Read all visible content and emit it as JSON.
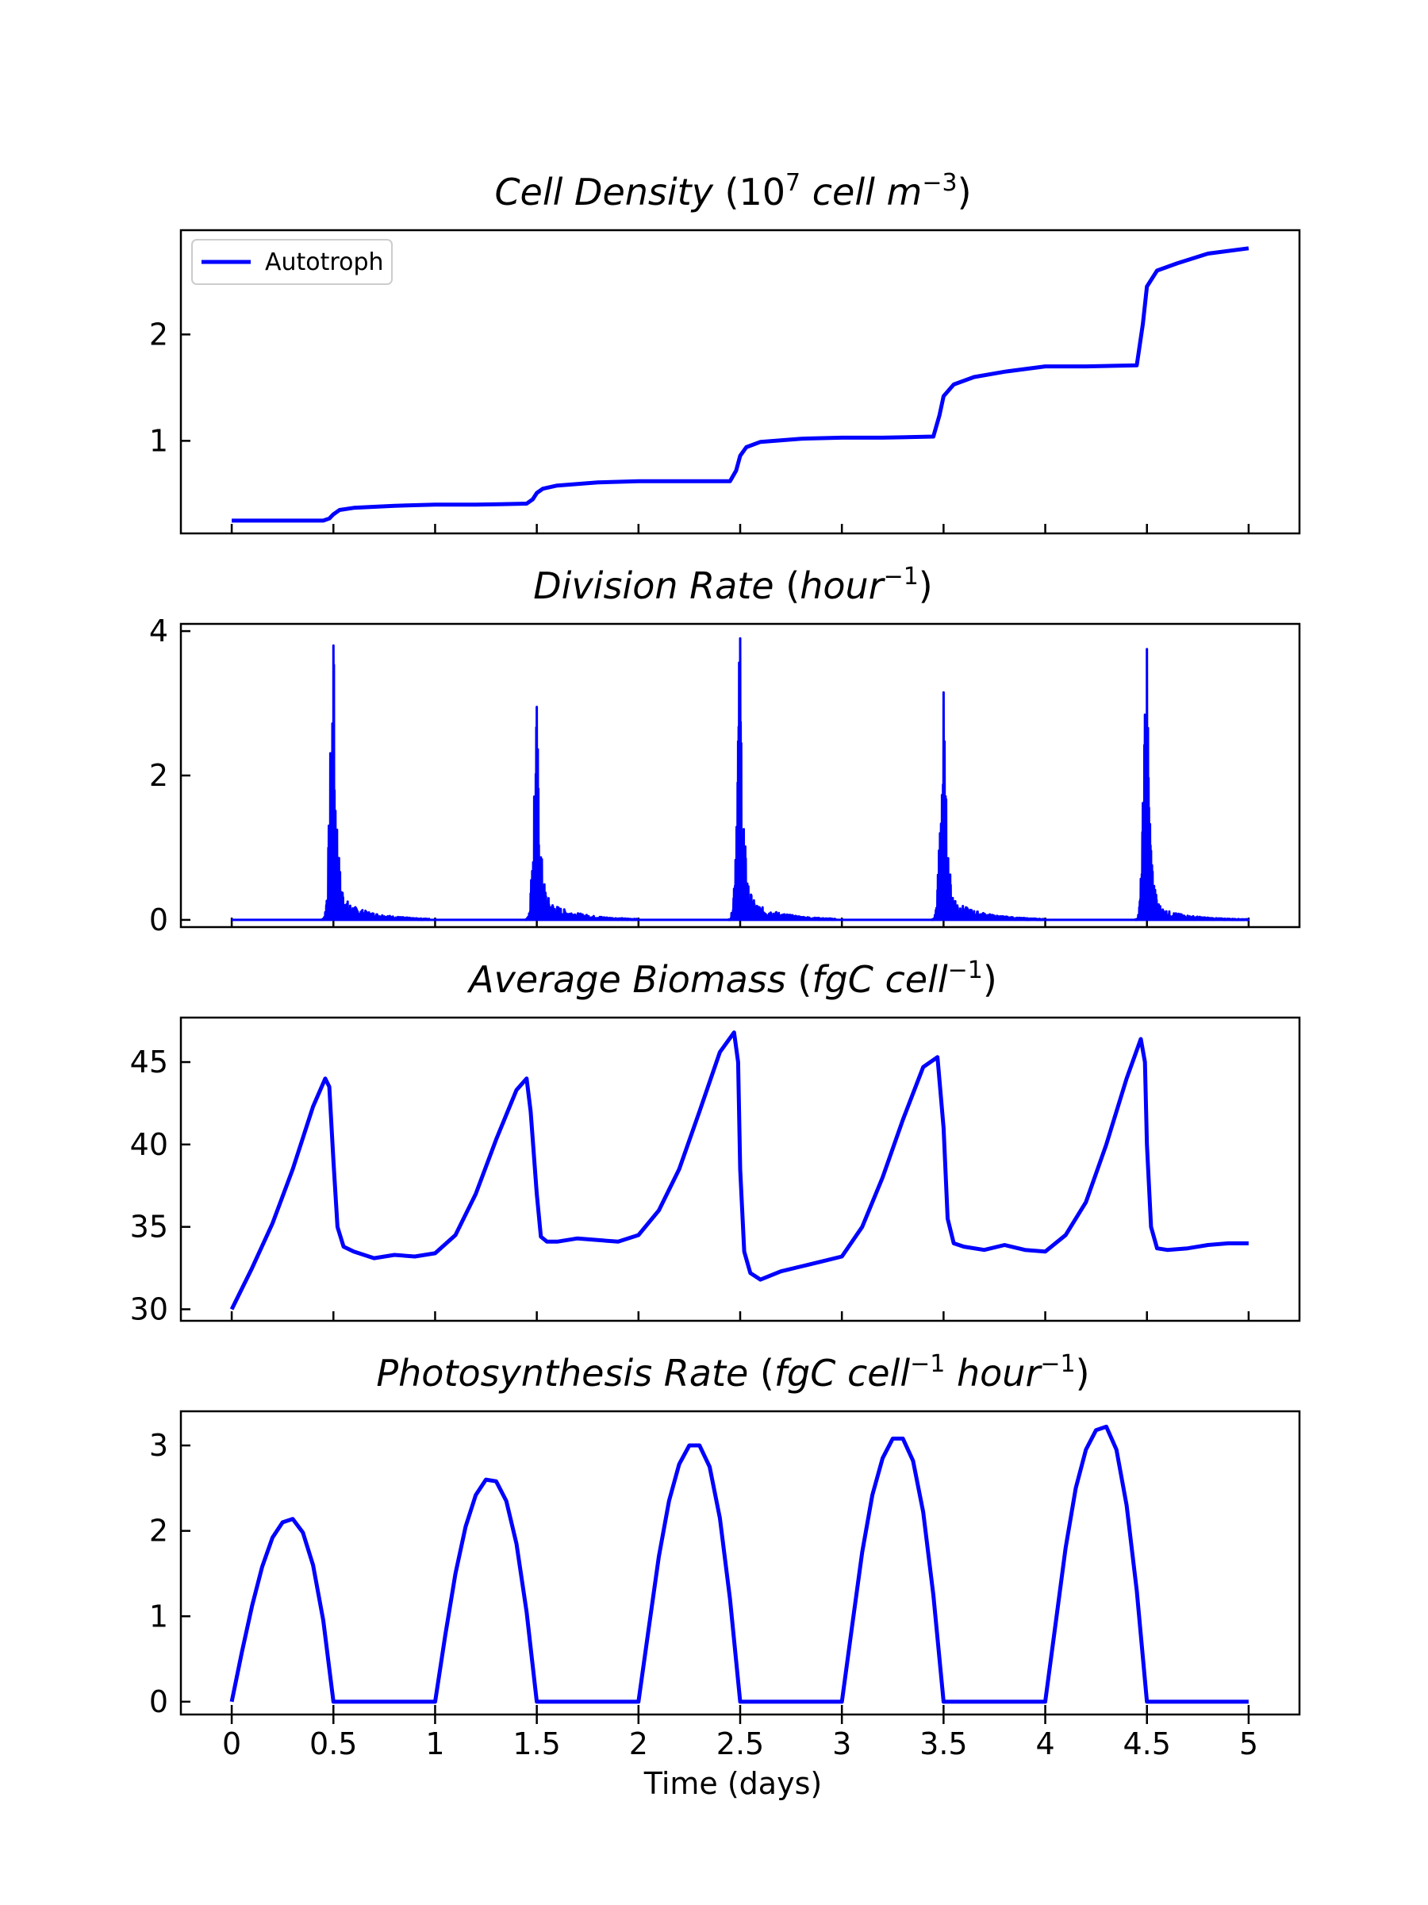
{
  "colors": {
    "series": "#0000ff",
    "axis": "#000000",
    "background": "#ffffff"
  },
  "xaxis": {
    "label": "Time (days)",
    "ticks": [
      0,
      0.5,
      1,
      1.5,
      2,
      2.5,
      3,
      3.5,
      4,
      4.5,
      5
    ],
    "tick_labels": [
      "0",
      "0.5",
      "1",
      "1.5",
      "2",
      "2.5",
      "3",
      "3.5",
      "4",
      "4.5",
      "5"
    ],
    "xlim": [
      -0.25,
      5.25
    ]
  },
  "legend": {
    "label": "Autotroph",
    "placement": "upper-left"
  },
  "panel_titles": [
    {
      "main": "Cell Density",
      "open": " (",
      "base": "10",
      "sup1": "7",
      "rest": " cell m",
      "sup2": "−3",
      "close": ")"
    },
    {
      "main": "Division Rate",
      "open": " (",
      "rest": "hour",
      "sup1": "−1",
      "close": ")"
    },
    {
      "main": "Average Biomass",
      "open": " (",
      "rest": "fgC cell",
      "sup1": "−1",
      "close": ")"
    },
    {
      "main": "Photosynthesis Rate",
      "open": " (",
      "rest": "fgC cell",
      "sup1": "−1",
      "mid": " hour",
      "sup2": "−1",
      "close": ")"
    }
  ],
  "chart_data": [
    {
      "type": "line",
      "title": "Cell Density (10^7 cell m^-3)",
      "xlabel": "Time (days)",
      "ylabel": "",
      "ylim": [
        0.13,
        2.98
      ],
      "yticks": [
        1,
        2
      ],
      "ytick_labels": [
        "1",
        "2"
      ],
      "legend": "upper-left",
      "series": [
        {
          "name": "Autotroph",
          "x": [
            0,
            0.45,
            0.48,
            0.5,
            0.53,
            0.6,
            0.8,
            1.0,
            1.2,
            1.45,
            1.48,
            1.5,
            1.53,
            1.6,
            1.8,
            2.0,
            2.2,
            2.45,
            2.48,
            2.5,
            2.53,
            2.6,
            2.8,
            3.0,
            3.2,
            3.45,
            3.48,
            3.5,
            3.55,
            3.65,
            3.8,
            4.0,
            4.2,
            4.45,
            4.48,
            4.5,
            4.55,
            4.65,
            4.8,
            5.0
          ],
          "y": [
            0.25,
            0.25,
            0.27,
            0.31,
            0.35,
            0.37,
            0.39,
            0.4,
            0.4,
            0.41,
            0.45,
            0.51,
            0.55,
            0.58,
            0.61,
            0.62,
            0.62,
            0.62,
            0.72,
            0.86,
            0.94,
            0.99,
            1.02,
            1.03,
            1.03,
            1.04,
            1.24,
            1.42,
            1.53,
            1.6,
            1.65,
            1.7,
            1.7,
            1.71,
            2.1,
            2.45,
            2.6,
            2.67,
            2.76,
            2.81
          ]
        }
      ]
    },
    {
      "type": "line",
      "title": "Division Rate (hour^-1)",
      "xlabel": "Time (days)",
      "ylabel": "",
      "ylim": [
        -0.1,
        4.1
      ],
      "yticks": [
        0,
        2,
        4
      ],
      "ytick_labels": [
        "0",
        "2",
        "4"
      ],
      "noise": "dense oscillating spikes after each peak",
      "series": [
        {
          "name": "Autotroph",
          "baseline": 0,
          "bursts": [
            {
              "peak_x": 0.5,
              "peak_y": 3.8,
              "start_x": 0.42,
              "end_x": 0.97,
              "tail_y": 0.12
            },
            {
              "peak_x": 1.5,
              "peak_y": 2.95,
              "start_x": 1.42,
              "end_x": 1.99,
              "tail_y": 0.12
            },
            {
              "peak_x": 2.5,
              "peak_y": 3.9,
              "start_x": 2.42,
              "end_x": 2.97,
              "tail_y": 0.12
            },
            {
              "peak_x": 3.5,
              "peak_y": 3.15,
              "start_x": 3.42,
              "end_x": 3.99,
              "tail_y": 0.12
            },
            {
              "peak_x": 4.5,
              "peak_y": 3.75,
              "start_x": 4.42,
              "end_x": 5.0,
              "tail_y": 0.08
            }
          ]
        }
      ]
    },
    {
      "type": "line",
      "title": "Average Biomass (fgC cell^-1)",
      "xlabel": "Time (days)",
      "ylabel": "",
      "ylim": [
        29.3,
        47.7
      ],
      "yticks": [
        30,
        35,
        40,
        45
      ],
      "ytick_labels": [
        "30",
        "35",
        "40",
        "45"
      ],
      "series": [
        {
          "name": "Autotroph",
          "x": [
            0,
            0.1,
            0.2,
            0.3,
            0.4,
            0.46,
            0.48,
            0.5,
            0.52,
            0.55,
            0.6,
            0.7,
            0.8,
            0.9,
            1.0,
            1.1,
            1.2,
            1.3,
            1.4,
            1.45,
            1.47,
            1.5,
            1.52,
            1.55,
            1.6,
            1.7,
            1.8,
            1.9,
            2.0,
            2.1,
            2.2,
            2.3,
            2.4,
            2.47,
            2.49,
            2.5,
            2.52,
            2.55,
            2.6,
            2.7,
            2.8,
            2.9,
            3.0,
            3.1,
            3.2,
            3.3,
            3.4,
            3.47,
            3.5,
            3.52,
            3.55,
            3.6,
            3.7,
            3.8,
            3.9,
            4.0,
            4.1,
            4.2,
            4.3,
            4.4,
            4.47,
            4.49,
            4.5,
            4.52,
            4.55,
            4.6,
            4.7,
            4.8,
            4.9,
            5.0
          ],
          "y": [
            30.0,
            32.5,
            35.2,
            38.5,
            42.3,
            44.0,
            43.5,
            39.0,
            35.0,
            33.8,
            33.5,
            33.1,
            33.3,
            33.2,
            33.4,
            34.5,
            37.0,
            40.3,
            43.3,
            44.0,
            42.0,
            37.0,
            34.4,
            34.1,
            34.1,
            34.3,
            34.2,
            34.1,
            34.5,
            36.0,
            38.5,
            42.0,
            45.6,
            46.8,
            45.0,
            38.5,
            33.5,
            32.2,
            31.8,
            32.3,
            32.6,
            32.9,
            33.2,
            35.0,
            38.0,
            41.5,
            44.7,
            45.3,
            41.0,
            35.5,
            34.0,
            33.8,
            33.6,
            33.9,
            33.6,
            33.5,
            34.5,
            36.5,
            40.0,
            44.0,
            46.4,
            45.0,
            40.0,
            35.0,
            33.7,
            33.6,
            33.7,
            33.9,
            34.0,
            34.0
          ]
        }
      ]
    },
    {
      "type": "line",
      "title": "Photosynthesis Rate (fgC cell^-1 hour^-1)",
      "xlabel": "Time (days)",
      "ylabel": "",
      "ylim": [
        -0.15,
        3.4
      ],
      "yticks": [
        0,
        1,
        2,
        3
      ],
      "ytick_labels": [
        "0",
        "1",
        "2",
        "3"
      ],
      "series": [
        {
          "name": "Autotroph",
          "x": [
            0,
            0.05,
            0.1,
            0.15,
            0.2,
            0.25,
            0.3,
            0.35,
            0.4,
            0.45,
            0.5,
            1.0,
            1.05,
            1.1,
            1.15,
            1.2,
            1.25,
            1.3,
            1.35,
            1.4,
            1.45,
            1.5,
            2.0,
            2.05,
            2.1,
            2.15,
            2.2,
            2.25,
            2.3,
            2.35,
            2.4,
            2.45,
            2.5,
            3.0,
            3.05,
            3.1,
            3.15,
            3.2,
            3.25,
            3.3,
            3.35,
            3.4,
            3.45,
            3.5,
            4.0,
            4.05,
            4.1,
            4.15,
            4.2,
            4.25,
            4.3,
            4.35,
            4.4,
            4.45,
            4.5,
            5.0
          ],
          "y": [
            0,
            0.58,
            1.12,
            1.58,
            1.92,
            2.1,
            2.14,
            1.98,
            1.6,
            0.95,
            0,
            0,
            0.78,
            1.5,
            2.05,
            2.42,
            2.6,
            2.58,
            2.35,
            1.85,
            1.05,
            0,
            0,
            0.85,
            1.7,
            2.35,
            2.78,
            3.0,
            3.0,
            2.75,
            2.15,
            1.2,
            0,
            0,
            0.88,
            1.75,
            2.42,
            2.85,
            3.08,
            3.08,
            2.82,
            2.22,
            1.25,
            0,
            0,
            0.9,
            1.8,
            2.5,
            2.95,
            3.18,
            3.22,
            2.95,
            2.3,
            1.3,
            0,
            0
          ]
        }
      ]
    }
  ]
}
